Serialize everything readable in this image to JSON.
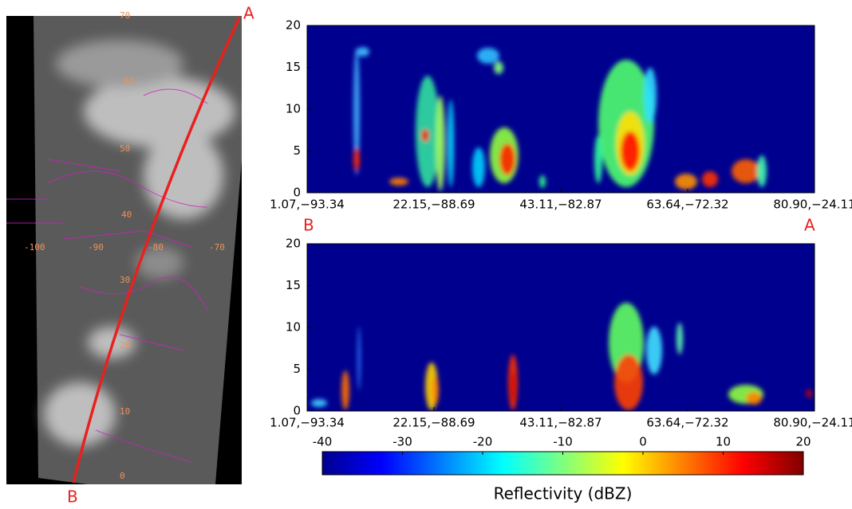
{
  "map": {
    "lat_labels": [
      "70",
      "60",
      "50",
      "40",
      "30",
      "20",
      "10",
      "0"
    ],
    "lon_labels": [
      "-100",
      "-90",
      "-80",
      "-70"
    ],
    "start_label": "B",
    "end_label": "A"
  },
  "chart_data": [
    {
      "type": "heatmap",
      "ylim": [
        0,
        20
      ],
      "yticks": [
        0,
        5,
        10,
        15,
        20
      ],
      "x_labels": [
        "1.07,−93.34",
        "22.15,−88.69",
        "43.11,−82.87",
        "63.64,−72.32",
        "80.90,−24.11"
      ],
      "start_label": "B",
      "end_label": "A"
    },
    {
      "type": "heatmap",
      "ylim": [
        0,
        20
      ],
      "yticks": [
        0,
        5,
        10,
        15,
        20
      ],
      "x_labels": [
        "1.07,−93.34",
        "22.15,−88.69",
        "43.11,−82.87",
        "63.64,−72.32",
        "80.90,−24.11"
      ]
    },
    {
      "type": "colorbar",
      "title": "Reflectivity (dBZ)",
      "xlim": [
        -40,
        20
      ],
      "xticks": [
        -40,
        -30,
        -20,
        -10,
        0,
        10,
        20
      ]
    }
  ]
}
